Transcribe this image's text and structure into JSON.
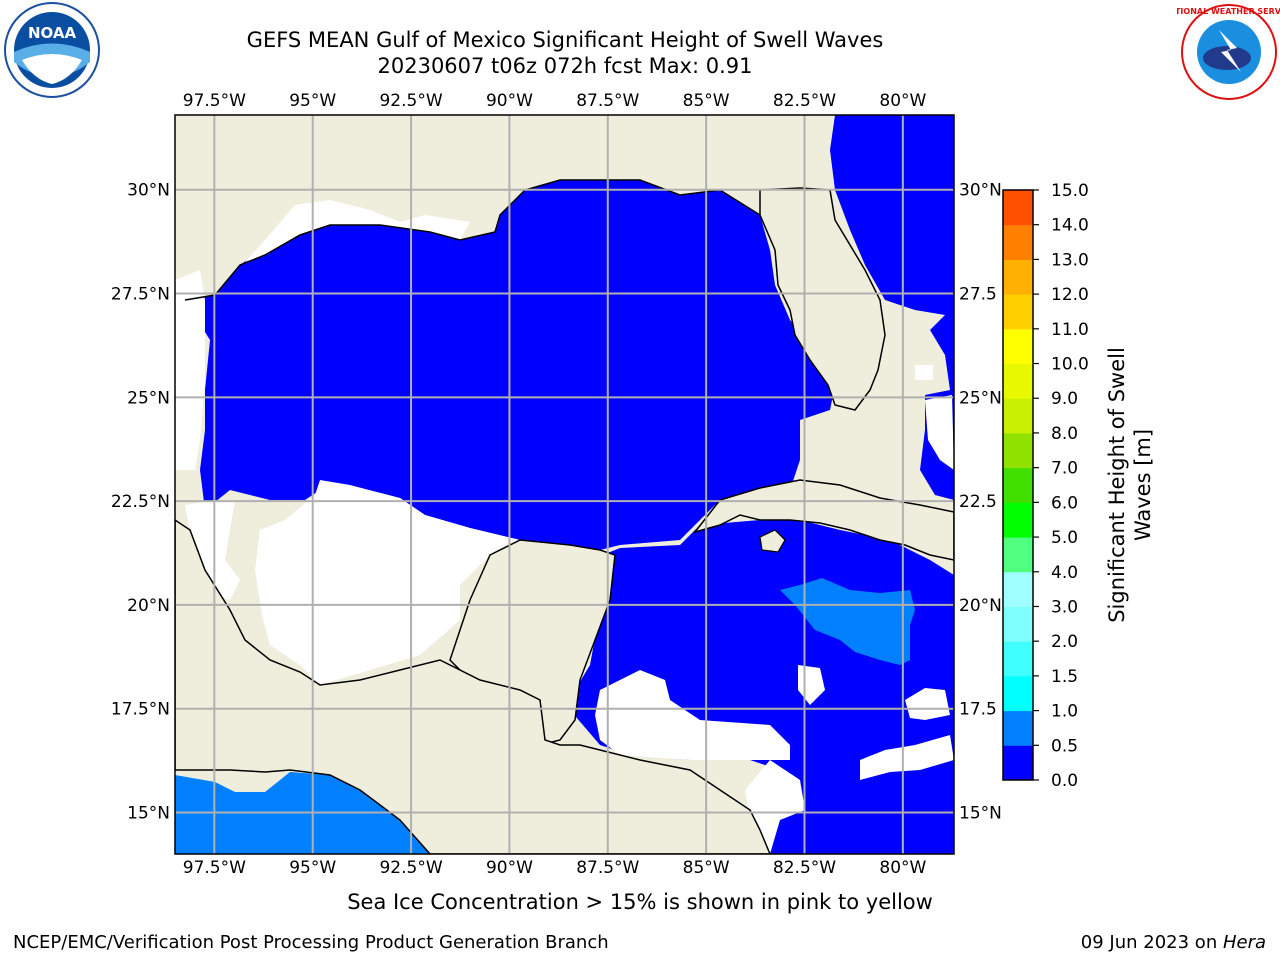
{
  "title": {
    "line1": "GEFS MEAN Gulf of Mexico Significant Height of Swell Waves",
    "line2": "20230607 t06z 072h fcst   Max: 0.91"
  },
  "map": {
    "region": "Gulf of Mexico",
    "lon_range": [
      -98.5,
      -78.7
    ],
    "lat_range": [
      14.0,
      31.8
    ],
    "grid": true,
    "lon_labels": [
      "97.5°W",
      "95°W",
      "92.5°W",
      "90°W",
      "87.5°W",
      "85°W",
      "82.5°W",
      "80°W"
    ],
    "lat_labels": [
      "30°N",
      "27.5°N",
      "25°N",
      "22.5°N",
      "20°N",
      "17.5°N",
      "15°N"
    ],
    "right_lat_labels": [
      "30°N",
      "27.5",
      "25°N",
      "22.5",
      "20°N",
      "17.5",
      "15°N"
    ],
    "land_color": "#efeedd",
    "ocean_color": "#0000ff",
    "swell_0_5_to_1_0_color": "#0080ff",
    "no_data_color": "#ffffff"
  },
  "colorbar": {
    "label_line1": "Significant Height of Swell",
    "label_line2": "Waves [m]",
    "ticks": [
      "0.0",
      "0.5",
      "1.0",
      "1.5",
      "2.0",
      "3.0",
      "4.0",
      "5.0",
      "6.0",
      "7.0",
      "8.0",
      "9.0",
      "10.0",
      "11.0",
      "12.0",
      "13.0",
      "14.0",
      "15.0"
    ],
    "colors": [
      "#0000ff",
      "#0080ff",
      "#00ffff",
      "#40ffff",
      "#80ffff",
      "#a0ffff",
      "#50ff80",
      "#00ff00",
      "#40e000",
      "#90e000",
      "#c8f000",
      "#e8f800",
      "#ffff00",
      "#ffd000",
      "#ffb000",
      "#ff8000",
      "#ff5000",
      "#ff2000",
      "#ff0000"
    ]
  },
  "note": "Sea Ice Concentration > 15% is shown in pink to yellow",
  "footer": {
    "left": "NCEP/EMC/Verification Post Processing Product Generation Branch",
    "date": "09 Jun 2023 on ",
    "machine": "Hera"
  },
  "logos": {
    "left_icon": "noaa-logo-icon",
    "left_text": "NOAA",
    "right_icon": "nws-logo-icon",
    "right_text": "NATIONAL WEATHER SERVICE"
  }
}
